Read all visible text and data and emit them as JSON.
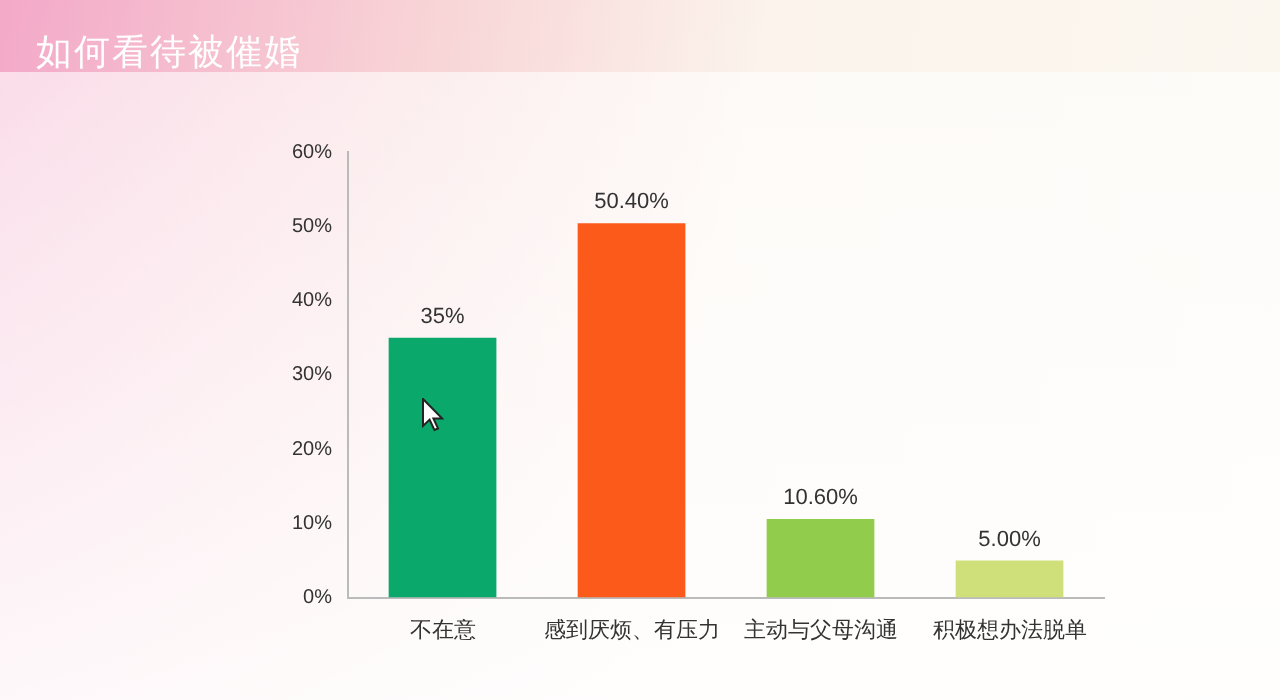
{
  "chart_data": {
    "type": "bar",
    "title": "如何看待被催婚",
    "categories": [
      "不在意",
      "感到厌烦、有压力",
      "主动与父母沟通",
      "积极想办法脱单"
    ],
    "values": [
      35,
      50.4,
      10.6,
      5
    ],
    "colors": [
      "#0aa86a",
      "#fc5a1a",
      "#92cc4c",
      "#cfe07a"
    ],
    "value_labels": [
      "35%",
      "50.40%",
      "10.60%",
      "5.00%"
    ],
    "ylim": [
      0,
      60
    ],
    "yticks": [
      {
        "value": 0,
        "label": "0%"
      },
      {
        "value": 10,
        "label": "10%"
      },
      {
        "value": 20,
        "label": "20%"
      },
      {
        "value": 30,
        "label": "30%"
      },
      {
        "value": 40,
        "label": "40%"
      },
      {
        "value": 50,
        "label": "50%"
      },
      {
        "value": 60,
        "label": "60%"
      }
    ],
    "grid": false,
    "legend": false
  }
}
